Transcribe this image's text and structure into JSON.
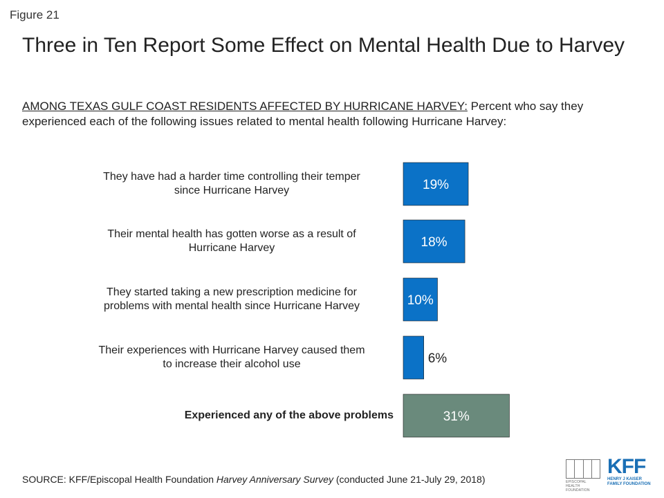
{
  "figure_label": "Figure 21",
  "title": "Three in Ten Report Some Effect on Mental Health Due to Harvey",
  "subtitle_lead": "AMONG TEXAS GULF COAST RESIDENTS AFFECTED BY HURRICANE HARVEY:",
  "subtitle_rest": " Percent who say they experienced each of the following issues related to mental health following Hurricane Harvey:",
  "chart_data": {
    "type": "bar",
    "orientation": "horizontal",
    "categories": [
      "They have had a harder time controlling their temper since Hurricane Harvey",
      "Their mental health has gotten worse as a result of Hurricane Harvey",
      "They started taking a new prescription medicine for problems with mental health since Hurricane Harvey",
      "Their experiences with Hurricane Harvey caused them to increase their alcohol use",
      "Experienced any of the above problems"
    ],
    "values": [
      19,
      18,
      10,
      6,
      31
    ],
    "value_labels": [
      "19%",
      "18%",
      "10%",
      "6%",
      "31%"
    ],
    "bar_colors": [
      "#0b72c7",
      "#0b72c7",
      "#0b72c7",
      "#0b72c7",
      "#6a8a7c"
    ],
    "xlim": [
      0,
      100
    ],
    "grid": false,
    "legend": "none"
  },
  "category_lines": [
    [
      "They have had a harder time controlling their temper",
      "since Hurricane Harvey"
    ],
    [
      "Their mental health has gotten worse as a result of",
      "Hurricane Harvey"
    ],
    [
      "They started taking a new prescription medicine for",
      "problems with mental health since Hurricane Harvey"
    ],
    [
      "Their experiences with Hurricane Harvey caused them",
      "to increase their alcohol use"
    ],
    [
      "Experienced any of the above problems"
    ]
  ],
  "source": {
    "prefix": "SOURCE: KFF/Episcopal Health Foundation ",
    "survey": "Harvey Anniversary Survey",
    "suffix": " (conducted June 21-July 29, 2018)"
  },
  "logos": {
    "ehf": "EPISCOPAL HEALTH FOUNDATION",
    "kff_big": "KFF",
    "kff_small": "HENRY J KAISER FAMILY FOUNDATION"
  }
}
